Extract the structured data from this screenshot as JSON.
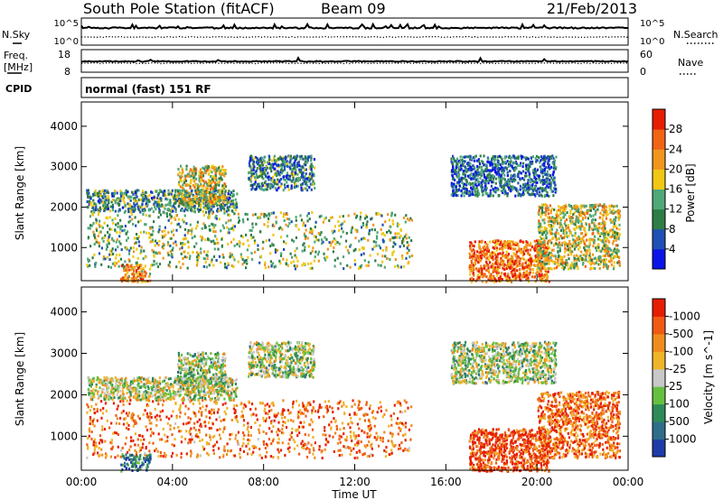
{
  "header": {
    "station": "South Pole Station (fitACF)",
    "beam": "Beam 09",
    "date": "21/Feb/2013"
  },
  "panels": {
    "nsky_label": "N.Sky",
    "nsearch_label": "N.Search",
    "nsky_ticks": [
      "10^5",
      "10^0"
    ],
    "nsearch_ticks": [
      "10^5",
      "10^0"
    ],
    "freq_label": "Freq.",
    "freq_unit": "[MHz]",
    "freq_ticks": [
      "18",
      "8"
    ],
    "nave_label": "Nave",
    "nave_ticks": [
      "60",
      "0"
    ],
    "cpid_label": "CPID",
    "cpid_text": "normal (fast) 151 RF"
  },
  "chart_data": [
    {
      "type": "heatmap",
      "title": "",
      "xlabel": "Time UT",
      "ylabel": "Slant Range [km]",
      "x_ticks": [
        "00:00",
        "04:00",
        "08:00",
        "12:00",
        "16:00",
        "20:00",
        "00:00"
      ],
      "x_range_hours": [
        0,
        24
      ],
      "y_ticks": [
        1000,
        2000,
        3000,
        4000
      ],
      "ylim": [
        180,
        4600
      ],
      "colorbar": {
        "label": "Power [dB]",
        "ticks": [
          4,
          8,
          12,
          16,
          20,
          24,
          28
        ],
        "range": [
          0,
          30
        ],
        "colors": [
          "#0a14e6",
          "#1e50b4",
          "#2e7d46",
          "#4fa878",
          "#f0c814",
          "#f0961e",
          "#f06414",
          "#e61e00"
        ]
      },
      "echo_regions": [
        {
          "t0": 0.2,
          "t1": 6.8,
          "r0": 1900,
          "r1": 2450,
          "level": 0.35
        },
        {
          "t0": 4.2,
          "t1": 6.3,
          "r0": 2100,
          "r1": 3050,
          "level": 0.55
        },
        {
          "t0": 7.3,
          "t1": 10.2,
          "r0": 2450,
          "r1": 3300,
          "level": 0.3
        },
        {
          "t0": 0.2,
          "t1": 14.5,
          "r0": 500,
          "r1": 1900,
          "level": 0.45
        },
        {
          "t0": 1.7,
          "t1": 3.0,
          "r0": 180,
          "r1": 600,
          "level": 0.7
        },
        {
          "t0": 16.2,
          "t1": 20.8,
          "r0": 2300,
          "r1": 3300,
          "level": 0.25
        },
        {
          "t0": 17.0,
          "t1": 20.5,
          "r0": 180,
          "r1": 1200,
          "level": 0.8
        },
        {
          "t0": 20.0,
          "t1": 23.6,
          "r0": 500,
          "r1": 2100,
          "level": 0.55
        }
      ]
    },
    {
      "type": "heatmap",
      "title": "",
      "xlabel": "Time UT",
      "ylabel": "Slant Range [km]",
      "x_ticks": [
        "00:00",
        "04:00",
        "08:00",
        "12:00",
        "16:00",
        "20:00",
        "00:00"
      ],
      "x_range_hours": [
        0,
        24
      ],
      "y_ticks": [
        1000,
        2000,
        3000,
        4000
      ],
      "ylim": [
        180,
        4600
      ],
      "colorbar": {
        "label": "Velocity [m s^-1]",
        "ticks": [
          "1000",
          "500",
          "100",
          "25",
          "-25",
          "-100",
          "-500",
          "-1000"
        ],
        "colors": [
          "#1e3ca8",
          "#2e6e8a",
          "#2e8b57",
          "#66c040",
          "#c8c8c8",
          "#f0b428",
          "#f08c1e",
          "#f05a14",
          "#e61e00"
        ]
      },
      "echo_regions": [
        {
          "t0": 0.2,
          "t1": 6.8,
          "r0": 1900,
          "r1": 2450,
          "level": 0.5
        },
        {
          "t0": 4.2,
          "t1": 6.3,
          "r0": 2100,
          "r1": 3050,
          "level": 0.45
        },
        {
          "t0": 7.3,
          "t1": 10.2,
          "r0": 2450,
          "r1": 3300,
          "level": 0.45
        },
        {
          "t0": 0.2,
          "t1": 14.5,
          "r0": 500,
          "r1": 1900,
          "level": 0.8
        },
        {
          "t0": 1.7,
          "t1": 3.0,
          "r0": 180,
          "r1": 600,
          "level": 0.2
        },
        {
          "t0": 16.2,
          "t1": 20.8,
          "r0": 2300,
          "r1": 3300,
          "level": 0.45
        },
        {
          "t0": 17.0,
          "t1": 20.5,
          "r0": 180,
          "r1": 1200,
          "level": 0.9
        },
        {
          "t0": 20.0,
          "t1": 23.6,
          "r0": 500,
          "r1": 2100,
          "level": 0.8
        }
      ]
    }
  ]
}
